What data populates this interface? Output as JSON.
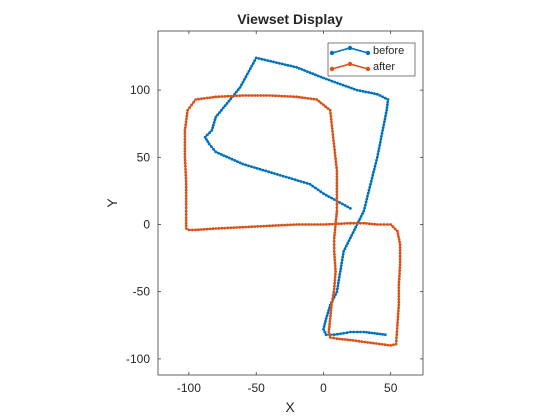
{
  "chart_data": {
    "type": "line",
    "title": "Viewset Display",
    "xlabel": "X",
    "ylabel": "Y",
    "xlim": [
      -123,
      74
    ],
    "ylim": [
      -112,
      144
    ],
    "xticks": [
      -100,
      -50,
      0,
      50
    ],
    "yticks": [
      -100,
      -50,
      0,
      50,
      100
    ],
    "xtick_labels": [
      "-100",
      "-50",
      "0",
      "50"
    ],
    "ytick_labels": [
      "-100",
      "-50",
      "0",
      "50",
      "100"
    ],
    "grid": false,
    "legend_position": "top-right",
    "series": [
      {
        "name": "before",
        "color": "#0072BD",
        "marker": "dot",
        "x": [
          20,
          0,
          -10,
          -30,
          -60,
          -80,
          -85,
          -88,
          -83,
          -80,
          -62,
          -50,
          -20,
          0,
          25,
          40,
          48,
          47,
          44,
          40,
          30,
          25,
          15,
          10,
          5,
          2,
          0,
          2,
          5,
          8,
          15,
          20,
          25,
          30,
          38,
          46
        ],
        "y": [
          12,
          23,
          30,
          36,
          45,
          54,
          60,
          65,
          70,
          80,
          102,
          124,
          117,
          109,
          100,
          97,
          93,
          85,
          70,
          50,
          10,
          0,
          -20,
          -50,
          -60,
          -70,
          -78,
          -82,
          -82,
          -82,
          -81,
          -80,
          -80,
          -80,
          -81,
          -82
        ]
      },
      {
        "name": "after",
        "color": "#D95319",
        "marker": "dot",
        "x": [
          20,
          30,
          40,
          50,
          55,
          57,
          57,
          56,
          56,
          55,
          54,
          50,
          35,
          20,
          10,
          5,
          4,
          5,
          6,
          8,
          9,
          8,
          8,
          9,
          10,
          10,
          10,
          5,
          -5,
          -20,
          -40,
          -60,
          -80,
          -95,
          -101,
          -103,
          -103,
          -102,
          -102,
          -102,
          -102,
          -100,
          -95,
          -80,
          -60,
          -40,
          -20,
          0,
          20
        ],
        "y": [
          1,
          1,
          0,
          0,
          -5,
          -15,
          -30,
          -45,
          -60,
          -75,
          -89,
          -90,
          -88,
          -86,
          -85,
          -84,
          -80,
          -70,
          -60,
          -48,
          -35,
          -20,
          -10,
          0,
          10,
          20,
          40,
          85,
          93,
          95,
          96,
          96,
          95,
          93,
          85,
          70,
          50,
          30,
          15,
          5,
          -3,
          -4,
          -4,
          -3,
          -2,
          -1,
          0,
          0,
          1
        ]
      }
    ]
  }
}
